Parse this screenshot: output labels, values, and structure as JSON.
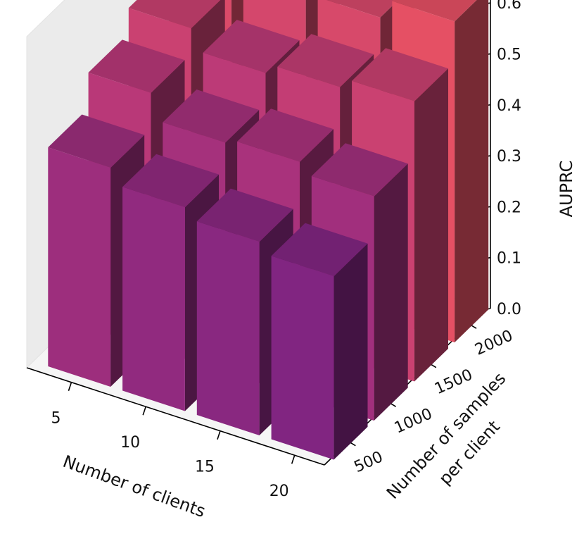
{
  "chart_data": {
    "type": "bar3d",
    "title": "",
    "xlabel": "Number of clients",
    "ylabel_lines": [
      "Number of samples",
      "per client"
    ],
    "zlabel": "AUPRC",
    "x_categories": [
      "5",
      "10",
      "15",
      "20"
    ],
    "y_categories": [
      "500",
      "1000",
      "1500",
      "2000"
    ],
    "z_ticks": [
      "0.0",
      "0.1",
      "0.2",
      "0.3",
      "0.4",
      "0.5",
      "0.6"
    ],
    "zlim": [
      0,
      0.65
    ],
    "colormap": "magma",
    "grid": false,
    "values": [
      [
        0.43,
        0.5,
        0.55,
        0.6
      ],
      [
        0.4,
        0.45,
        0.51,
        0.58
      ],
      [
        0.38,
        0.46,
        0.53,
        0.59
      ],
      [
        0.36,
        0.44,
        0.55,
        0.63
      ]
    ]
  }
}
